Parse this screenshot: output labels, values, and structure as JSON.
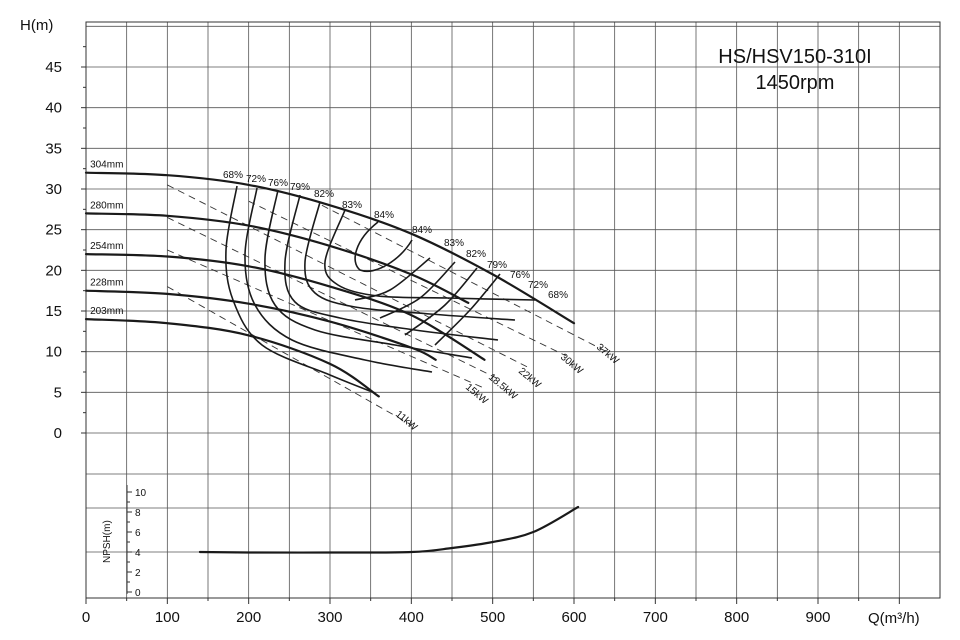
{
  "chart_data": {
    "type": "line",
    "title": "HS/HSV150-310I",
    "subtitle": "1450rpm",
    "xlabel": "Q(m³/h)",
    "ylabel": "H(m)",
    "xlim": [
      0,
      1050
    ],
    "ylim": [
      0,
      50
    ],
    "x_ticks": [
      "0",
      "100",
      "200",
      "300",
      "400",
      "500",
      "600",
      "700",
      "800",
      "900"
    ],
    "y_ticks": [
      "0",
      "5",
      "10",
      "15",
      "20",
      "25",
      "30",
      "35",
      "40",
      "45"
    ],
    "grid": true,
    "head_curves": [
      {
        "name": "304mm",
        "points": [
          [
            0,
            32
          ],
          [
            100,
            31.7
          ],
          [
            200,
            30.5
          ],
          [
            300,
            28
          ],
          [
            400,
            24.5
          ],
          [
            500,
            19.5
          ],
          [
            600,
            13.5
          ]
        ]
      },
      {
        "name": "280mm",
        "points": [
          [
            0,
            27
          ],
          [
            100,
            26.7
          ],
          [
            200,
            25.5
          ],
          [
            300,
            23
          ],
          [
            400,
            19.5
          ],
          [
            470,
            16
          ]
        ]
      },
      {
        "name": "254mm",
        "points": [
          [
            0,
            22
          ],
          [
            100,
            21.7
          ],
          [
            200,
            20.5
          ],
          [
            300,
            18
          ],
          [
            400,
            14.5
          ],
          [
            490,
            9
          ]
        ]
      },
      {
        "name": "228mm",
        "points": [
          [
            0,
            17.5
          ],
          [
            100,
            17.1
          ],
          [
            200,
            15.9
          ],
          [
            300,
            13.7
          ],
          [
            400,
            10.5
          ],
          [
            430,
            9
          ]
        ]
      },
      {
        "name": "203mm",
        "points": [
          [
            0,
            14
          ],
          [
            100,
            13.5
          ],
          [
            200,
            12
          ],
          [
            300,
            8.5
          ],
          [
            360,
            4.5
          ]
        ]
      }
    ],
    "efficiency_labels": [
      "68%",
      "72%",
      "76%",
      "79%",
      "82%",
      "83%",
      "84%",
      "84%",
      "83%",
      "82%",
      "79%",
      "76%",
      "72%",
      "68%"
    ],
    "power_labels": [
      "11kW",
      "15kW",
      "18.5kW",
      "22kW",
      "30kW",
      "37kW"
    ],
    "npsh": {
      "ylabel": "NPSH(m)",
      "ylim": [
        0,
        10
      ],
      "y_ticks": [
        "0",
        "2",
        "4",
        "6",
        "8",
        "10"
      ],
      "points": [
        [
          140,
          4
        ],
        [
          200,
          3.95
        ],
        [
          300,
          3.95
        ],
        [
          400,
          4
        ],
        [
          450,
          4.4
        ],
        [
          500,
          5
        ],
        [
          550,
          6
        ],
        [
          605,
          8.5
        ]
      ]
    }
  }
}
